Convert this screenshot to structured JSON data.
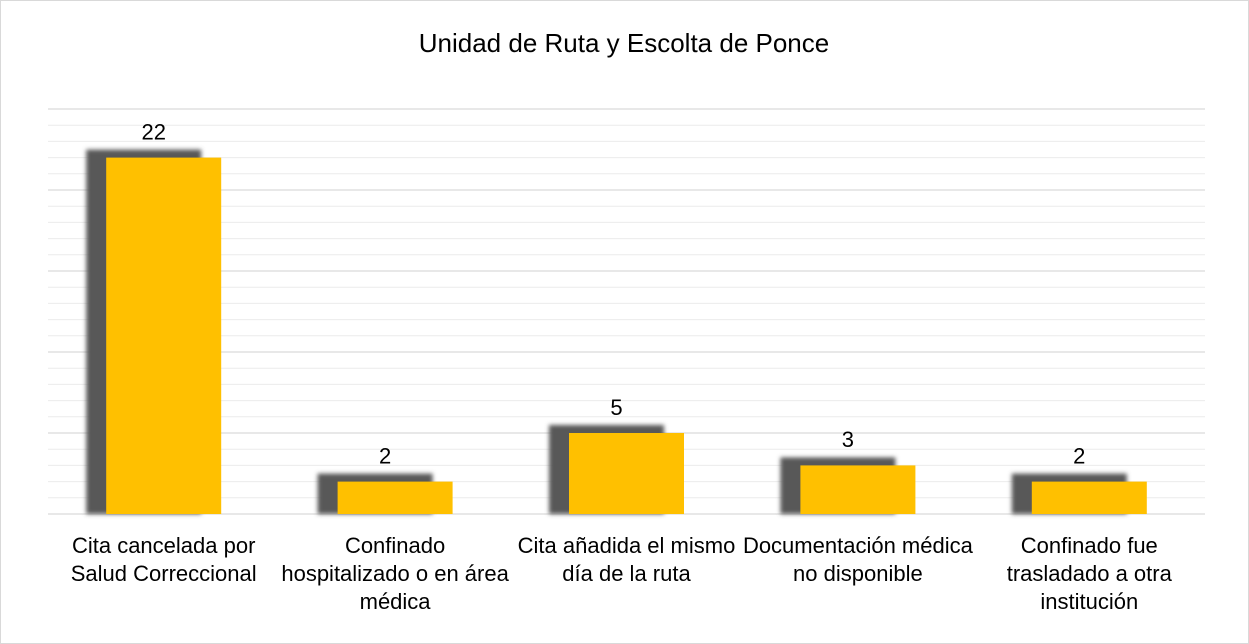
{
  "chart_data": {
    "type": "bar",
    "title": "Unidad de Ruta y Escolta de Ponce",
    "categories": [
      "Cita cancelada por Salud Correccional",
      "Confinado hospitalizado o en área médica",
      "Cita añadida el mismo día de la ruta",
      "Documentación médica no disponible",
      "Confinado fue trasladado a otra institución"
    ],
    "values": [
      22,
      2,
      5,
      3,
      2
    ],
    "color": "#ffc000",
    "ylim": [
      0,
      25
    ],
    "yticks": [
      0,
      1,
      2,
      3,
      4,
      5,
      6,
      7,
      8,
      9,
      10,
      11,
      12,
      13,
      14,
      15,
      16,
      17,
      18,
      19,
      20,
      21,
      22,
      23,
      24,
      25
    ],
    "grid": true
  }
}
